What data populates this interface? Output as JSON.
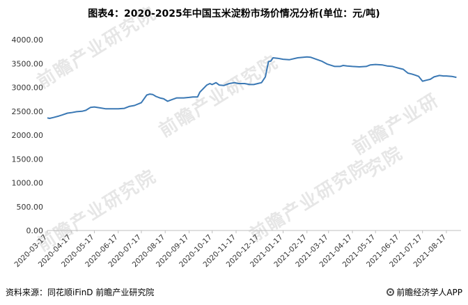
{
  "title": "图表4：2020-2025年中国玉米淀粉市场价情况分析(单位：元/吨)",
  "source": "资料来源：同花顺iFinD 前瞻产业研究院",
  "brand": "前瞻经济学人APP",
  "watermark": "前瞻产业研究院",
  "colors": {
    "line": "#3a78b4",
    "axis": "#bfbfbf",
    "text": "#333333"
  },
  "chart_data": {
    "type": "line",
    "title": "图表4：2020-2025年中国玉米淀粉市场价情况分析(单位：元/吨)",
    "xlabel": "",
    "ylabel": "",
    "ylim": [
      0,
      4000
    ],
    "yticks": [
      0,
      500,
      1000,
      1500,
      2000,
      2500,
      3000,
      3500,
      4000
    ],
    "ytick_labels": [
      "0.00",
      "500.00",
      "1000.00",
      "1500.00",
      "2000.00",
      "2500.00",
      "3000.00",
      "3500.00",
      "4000.00"
    ],
    "xtick_labels": [
      "2020-03-17",
      "2020-04-17",
      "2020-05-17",
      "2020-06-17",
      "2020-07-17",
      "2020-08-17",
      "2020-09-17",
      "2020-10-17",
      "2020-11-17",
      "2020-12-17",
      "2021-01-17",
      "2021-02-17",
      "2021-03-17",
      "2021-04-17",
      "2021-05-17",
      "2021-06-17",
      "2021-07-17",
      "2021-08-17"
    ],
    "grid": false,
    "legend": "none",
    "series": [
      {
        "x": [
          "2020-03-17",
          "2020-03-20",
          "2020-03-25",
          "2020-04-01",
          "2020-04-05",
          "2020-04-12",
          "2020-04-17",
          "2020-04-24",
          "2020-05-01",
          "2020-05-06",
          "2020-05-12",
          "2020-05-17",
          "2020-05-25",
          "2020-06-01",
          "2020-06-10",
          "2020-06-17",
          "2020-06-25",
          "2020-07-01",
          "2020-07-08",
          "2020-07-14",
          "2020-07-17",
          "2020-07-24",
          "2020-07-28",
          "2020-08-01",
          "2020-08-05",
          "2020-08-10",
          "2020-08-15",
          "2020-08-20",
          "2020-08-25",
          "2020-09-01",
          "2020-09-10",
          "2020-09-17",
          "2020-09-22",
          "2020-09-28",
          "2020-10-01",
          "2020-10-10",
          "2020-10-14",
          "2020-10-17",
          "2020-10-22",
          "2020-10-26",
          "2020-11-01",
          "2020-11-08",
          "2020-11-15",
          "2020-11-20",
          "2020-11-28",
          "2020-12-05",
          "2020-12-10",
          "2020-12-15",
          "2020-12-20",
          "2020-12-25",
          "2020-12-29",
          "2021-01-01",
          "2021-01-04",
          "2021-01-10",
          "2021-01-17",
          "2021-01-25",
          "2021-02-05",
          "2021-02-17",
          "2021-02-22",
          "2021-03-01",
          "2021-03-08",
          "2021-03-15",
          "2021-03-25",
          "2021-04-01",
          "2021-04-05",
          "2021-04-10",
          "2021-04-17",
          "2021-04-26",
          "2021-05-05",
          "2021-05-10",
          "2021-05-17",
          "2021-05-26",
          "2021-06-01",
          "2021-06-08",
          "2021-06-12",
          "2021-06-17",
          "2021-06-22",
          "2021-06-28",
          "2021-07-03",
          "2021-07-07",
          "2021-07-12",
          "2021-07-17",
          "2021-07-22",
          "2021-07-27",
          "2021-08-01",
          "2021-08-08",
          "2021-08-13",
          "2021-08-17",
          "2021-08-24",
          "2021-08-30"
        ],
        "values": [
          2360,
          2350,
          2370,
          2400,
          2420,
          2460,
          2470,
          2490,
          2500,
          2520,
          2580,
          2590,
          2570,
          2550,
          2550,
          2550,
          2560,
          2600,
          2620,
          2660,
          2680,
          2840,
          2860,
          2850,
          2810,
          2780,
          2760,
          2710,
          2740,
          2780,
          2780,
          2790,
          2800,
          2800,
          2900,
          3050,
          3080,
          3060,
          3100,
          3050,
          3040,
          3080,
          3100,
          3080,
          3080,
          3060,
          3060,
          3080,
          3100,
          3220,
          3540,
          3550,
          3620,
          3610,
          3590,
          3580,
          3620,
          3640,
          3630,
          3590,
          3550,
          3490,
          3440,
          3440,
          3460,
          3450,
          3440,
          3430,
          3440,
          3470,
          3480,
          3470,
          3450,
          3440,
          3420,
          3400,
          3380,
          3300,
          3280,
          3260,
          3230,
          3130,
          3150,
          3170,
          3220,
          3250,
          3240,
          3240,
          3230,
          3210
        ]
      }
    ]
  }
}
